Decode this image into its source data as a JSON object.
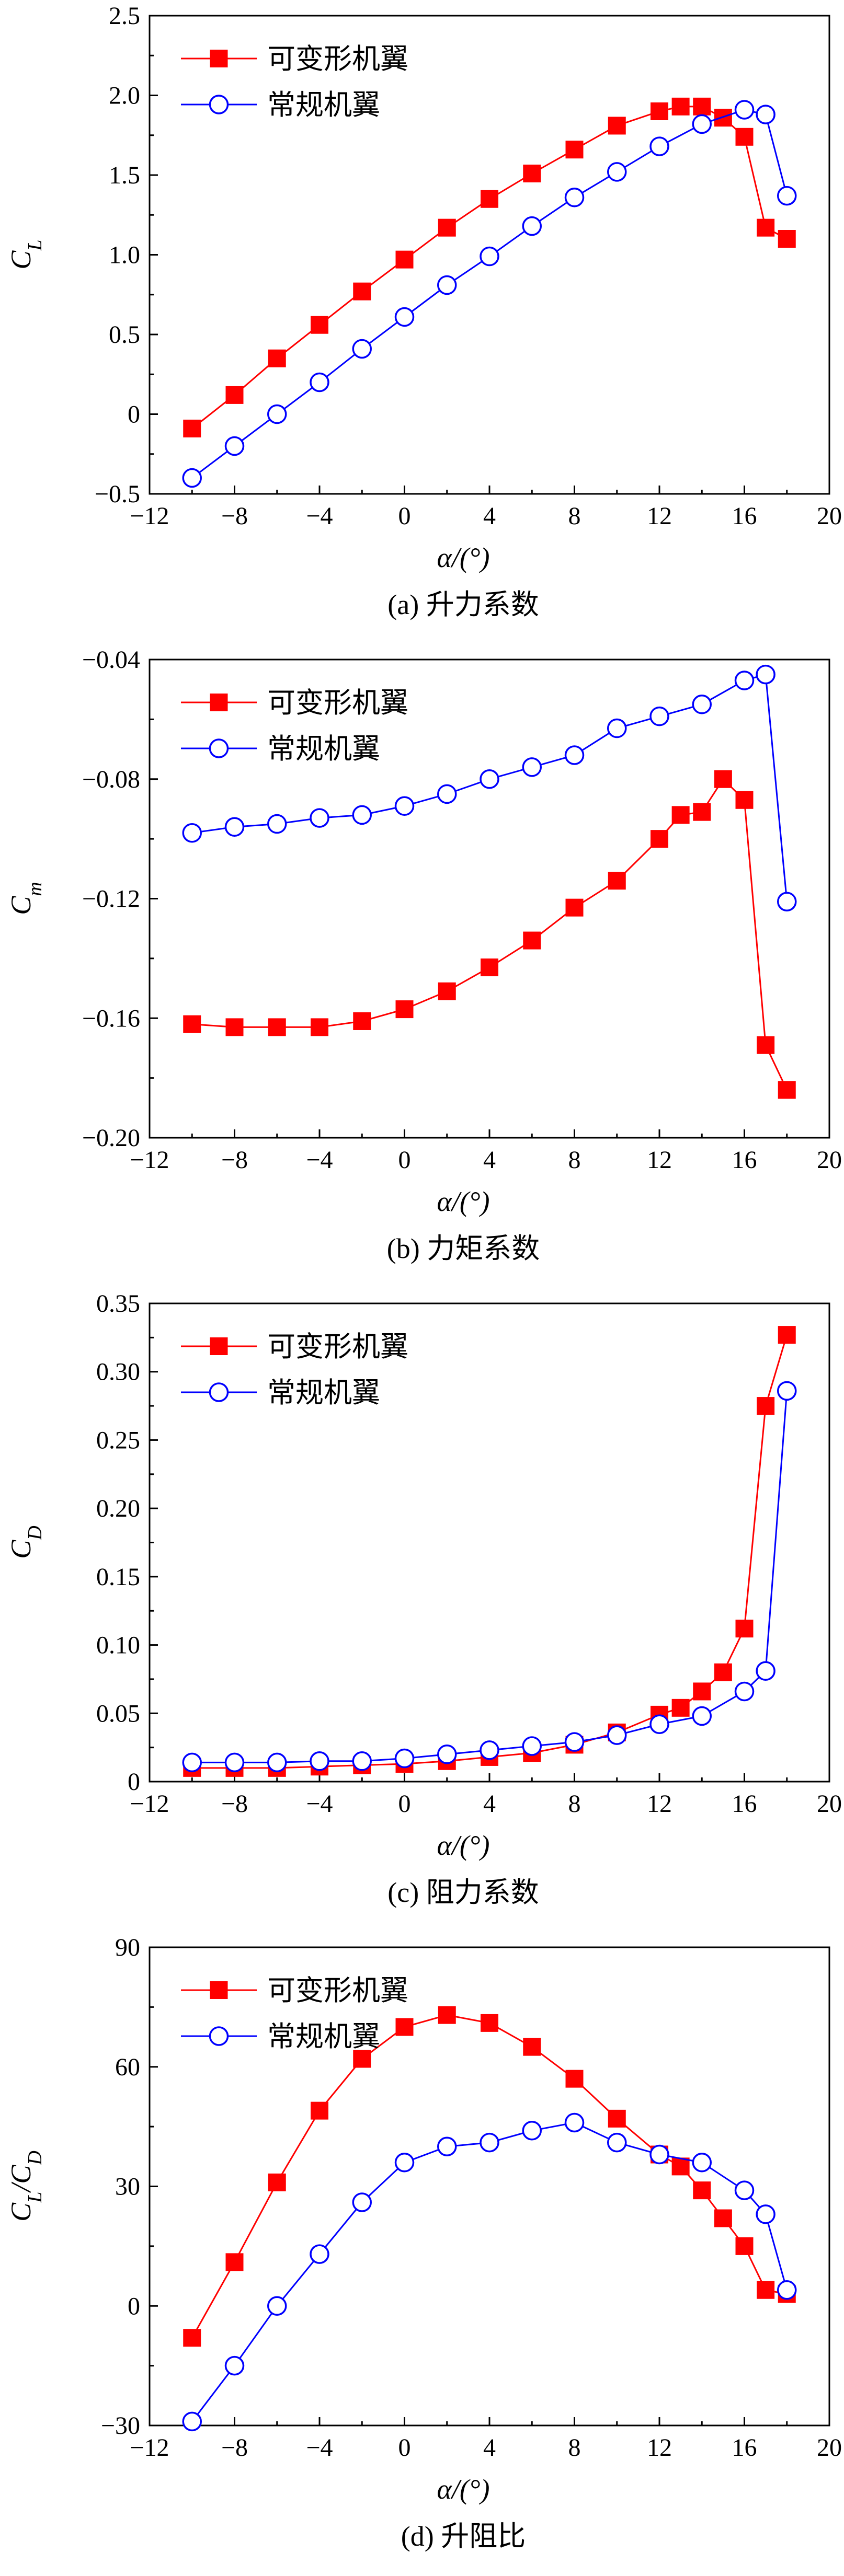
{
  "figure": {
    "panels": [
      {
        "id": "a",
        "caption": "(a) 升力系数",
        "ylabel_main": "C",
        "ylabel_sub": "L",
        "ylabel_mid": "",
        "ylabel_sub2": "",
        "xlabel": "α/(°)"
      },
      {
        "id": "b",
        "caption": "(b) 力矩系数",
        "ylabel_main": "C",
        "ylabel_sub": "m",
        "ylabel_mid": "",
        "ylabel_sub2": "",
        "xlabel": "α/(°)"
      },
      {
        "id": "c",
        "caption": "(c) 阻力系数",
        "ylabel_main": "C",
        "ylabel_sub": "D",
        "ylabel_mid": "",
        "ylabel_sub2": "",
        "xlabel": "α/(°)"
      },
      {
        "id": "d",
        "caption": "(d) 升阻比",
        "ylabel_main": "C",
        "ylabel_sub": "L",
        "ylabel_mid": "/C",
        "ylabel_sub2": "D",
        "xlabel": "α/(°)"
      }
    ]
  },
  "colors": {
    "series1": "#ff0000",
    "series2": "#0000ff"
  },
  "chart_data": [
    {
      "type": "line",
      "title": "(a) 升力系数",
      "xlabel": "α/(°)",
      "ylabel": "C_L",
      "xlim": [
        -12,
        20
      ],
      "ylim": [
        -0.5,
        2.5
      ],
      "xticks": [
        -12,
        -8,
        -4,
        0,
        4,
        8,
        12,
        16,
        20
      ],
      "xtick_labels": [
        "−12",
        "−8",
        "−4",
        "0",
        "4",
        "8",
        "12",
        "16",
        "20"
      ],
      "yticks": [
        -0.5,
        0,
        0.5,
        1.0,
        1.5,
        2.0,
        2.5
      ],
      "ytick_labels": [
        "−0.5",
        "0",
        "0.5",
        "1.0",
        "1.5",
        "2.0",
        "2.5"
      ],
      "legend": "top-left",
      "series": [
        {
          "name": "可变形机翼",
          "marker": "square",
          "x": [
            -10,
            -8,
            -6,
            -4,
            -2,
            0,
            2,
            4,
            6,
            8,
            10,
            12,
            13,
            14,
            15,
            16,
            17,
            18
          ],
          "y": [
            -0.09,
            0.12,
            0.35,
            0.56,
            0.77,
            0.97,
            1.17,
            1.35,
            1.51,
            1.66,
            1.81,
            1.9,
            1.93,
            1.93,
            1.86,
            1.74,
            1.17,
            1.1
          ]
        },
        {
          "name": "常规机翼",
          "marker": "circle",
          "x": [
            -10,
            -8,
            -6,
            -4,
            -2,
            0,
            2,
            4,
            6,
            8,
            10,
            12,
            14,
            16,
            17,
            18
          ],
          "y": [
            -0.4,
            -0.2,
            0.0,
            0.2,
            0.41,
            0.61,
            0.81,
            0.99,
            1.18,
            1.36,
            1.52,
            1.68,
            1.82,
            1.91,
            1.88,
            1.37
          ]
        }
      ]
    },
    {
      "type": "line",
      "title": "(b) 力矩系数",
      "xlabel": "α/(°)",
      "ylabel": "C_m",
      "xlim": [
        -12,
        20
      ],
      "ylim": [
        -0.2,
        -0.04
      ],
      "xticks": [
        -12,
        -8,
        -4,
        0,
        4,
        8,
        12,
        16,
        20
      ],
      "xtick_labels": [
        "−12",
        "−8",
        "−4",
        "0",
        "4",
        "8",
        "12",
        "16",
        "20"
      ],
      "yticks": [
        -0.2,
        -0.16,
        -0.12,
        -0.08,
        -0.04
      ],
      "ytick_labels": [
        "−0.20",
        "−0.16",
        "−0.12",
        "−0.08",
        "−0.04"
      ],
      "legend": "top-left",
      "series": [
        {
          "name": "可变形机翼",
          "marker": "square",
          "x": [
            -10,
            -8,
            -6,
            -4,
            -2,
            0,
            2,
            4,
            6,
            8,
            10,
            12,
            13,
            14,
            15,
            16,
            17,
            18
          ],
          "y": [
            -0.162,
            -0.163,
            -0.163,
            -0.163,
            -0.161,
            -0.157,
            -0.151,
            -0.143,
            -0.134,
            -0.123,
            -0.114,
            -0.1,
            -0.092,
            -0.091,
            -0.08,
            -0.087,
            -0.169,
            -0.184
          ]
        },
        {
          "name": "常规机翼",
          "marker": "circle",
          "x": [
            -10,
            -8,
            -6,
            -4,
            -2,
            0,
            2,
            4,
            6,
            8,
            10,
            12,
            14,
            16,
            17,
            18
          ],
          "y": [
            -0.098,
            -0.096,
            -0.095,
            -0.093,
            -0.092,
            -0.089,
            -0.085,
            -0.08,
            -0.076,
            -0.072,
            -0.063,
            -0.059,
            -0.055,
            -0.047,
            -0.045,
            -0.121
          ]
        }
      ]
    },
    {
      "type": "line",
      "title": "(c) 阻力系数",
      "xlabel": "α/(°)",
      "ylabel": "C_D",
      "xlim": [
        -12,
        20
      ],
      "ylim": [
        0,
        0.35
      ],
      "xticks": [
        -12,
        -8,
        -4,
        0,
        4,
        8,
        12,
        16,
        20
      ],
      "xtick_labels": [
        "−12",
        "−8",
        "−4",
        "0",
        "4",
        "8",
        "12",
        "16",
        "20"
      ],
      "yticks": [
        0,
        0.05,
        0.1,
        0.15,
        0.2,
        0.25,
        0.3,
        0.35
      ],
      "ytick_labels": [
        "0",
        "0.05",
        "0.10",
        "0.15",
        "0.20",
        "0.25",
        "0.30",
        "0.35"
      ],
      "legend": "top-left",
      "series": [
        {
          "name": "可变形机翼",
          "marker": "square",
          "x": [
            -10,
            -8,
            -6,
            -4,
            -2,
            0,
            2,
            4,
            6,
            8,
            10,
            12,
            13,
            14,
            15,
            16,
            17,
            18
          ],
          "y": [
            0.01,
            0.01,
            0.01,
            0.011,
            0.012,
            0.013,
            0.015,
            0.018,
            0.021,
            0.027,
            0.036,
            0.049,
            0.054,
            0.066,
            0.08,
            0.112,
            0.275,
            0.327
          ]
        },
        {
          "name": "常规机翼",
          "marker": "circle",
          "x": [
            -10,
            -8,
            -6,
            -4,
            -2,
            0,
            2,
            4,
            6,
            8,
            10,
            12,
            14,
            16,
            17,
            18
          ],
          "y": [
            0.014,
            0.014,
            0.014,
            0.015,
            0.015,
            0.017,
            0.02,
            0.023,
            0.026,
            0.029,
            0.034,
            0.042,
            0.048,
            0.066,
            0.081,
            0.286
          ]
        }
      ]
    },
    {
      "type": "line",
      "title": "(d) 升阻比",
      "xlabel": "α/(°)",
      "ylabel": "C_L/C_D",
      "xlim": [
        -12,
        20
      ],
      "ylim": [
        -30,
        90
      ],
      "xticks": [
        -12,
        -8,
        -4,
        0,
        4,
        8,
        12,
        16,
        20
      ],
      "xtick_labels": [
        "−12",
        "−8",
        "−4",
        "0",
        "4",
        "8",
        "12",
        "16",
        "20"
      ],
      "yticks": [
        -30,
        0,
        30,
        60,
        90
      ],
      "ytick_labels": [
        "−30",
        "0",
        "30",
        "60",
        "90"
      ],
      "legend": "top-left",
      "series": [
        {
          "name": "可变形机翼",
          "marker": "square",
          "x": [
            -10,
            -8,
            -6,
            -4,
            -2,
            0,
            2,
            4,
            6,
            8,
            10,
            12,
            13,
            14,
            15,
            16,
            17,
            18
          ],
          "y": [
            -8,
            11,
            31,
            49,
            62,
            70,
            73,
            71,
            65,
            57,
            47,
            38,
            35,
            29,
            22,
            15,
            4,
            3
          ]
        },
        {
          "name": "常规机翼",
          "marker": "circle",
          "x": [
            -10,
            -8,
            -6,
            -4,
            -2,
            0,
            2,
            4,
            6,
            8,
            10,
            12,
            14,
            16,
            17,
            18
          ],
          "y": [
            -29,
            -15,
            0,
            13,
            26,
            36,
            40,
            41,
            44,
            46,
            41,
            38,
            36,
            29,
            23,
            4
          ]
        }
      ]
    }
  ]
}
